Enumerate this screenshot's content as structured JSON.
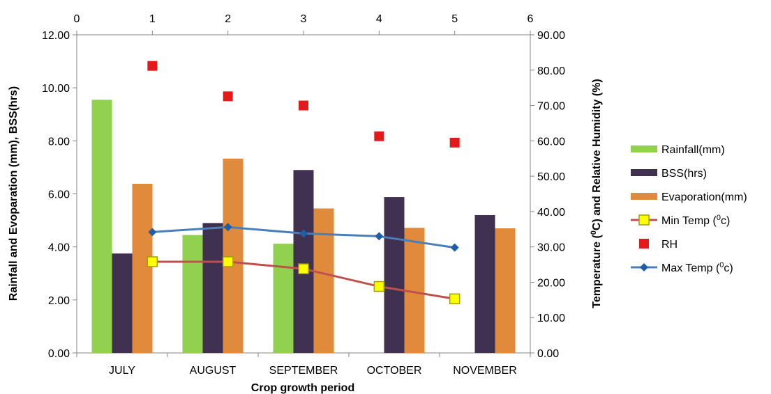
{
  "chart_data": {
    "type": "bar",
    "categories": [
      "JULY",
      "AUGUST",
      "SEPTEMBER",
      "OCTOBER",
      "NOVEMBER"
    ],
    "xlabel": "Crop growth period",
    "ylabel_left": "Rainfall and Evoparation (mm), BSS(hrs)",
    "ylabel_right": "Temperature (°C) and Relative Humidity (%)",
    "ylabel_right_parts": [
      "Temperature (",
      "0",
      "C) and Relative Humidity (%)"
    ],
    "y_left_ticks": [
      "0.00",
      "2.00",
      "4.00",
      "6.00",
      "8.00",
      "10.00",
      "12.00"
    ],
    "y_right_ticks": [
      "0.00",
      "10.00",
      "20.00",
      "30.00",
      "40.00",
      "50.00",
      "60.00",
      "70.00",
      "80.00",
      "90.00"
    ],
    "x_top_ticks": [
      "0",
      "1",
      "2",
      "3",
      "4",
      "5",
      "6"
    ],
    "ylim_left": [
      0,
      12
    ],
    "ylim_right": [
      0,
      90
    ],
    "xlim_top": [
      0,
      6
    ],
    "grid": false,
    "legend_position": "right",
    "bar_series": [
      {
        "name": "Rainfall(mm)",
        "color": "#92d050",
        "axis": "left",
        "values": [
          9.55,
          4.45,
          4.12,
          null,
          null
        ]
      },
      {
        "name": "BSS(hrs)",
        "color": "#403151",
        "axis": "left",
        "values": [
          3.75,
          4.9,
          6.9,
          5.88,
          5.2
        ]
      },
      {
        "name": "Evaporation(mm)",
        "color": "#e08a3c",
        "axis": "left",
        "values": [
          6.38,
          7.33,
          5.45,
          4.72,
          4.7
        ]
      }
    ],
    "line_series": [
      {
        "name": "Min Temp (°c)",
        "legend_parts": [
          "Min Temp (",
          "0",
          "c)"
        ],
        "color": "#c0504d",
        "marker": "square",
        "marker_fill": "#ffff00",
        "marker_stroke": "#a0a000",
        "axis": "right",
        "x": [
          1,
          2,
          3,
          4,
          5
        ],
        "values": [
          25.8,
          25.8,
          23.8,
          18.8,
          15.3
        ]
      },
      {
        "name": "RH",
        "legend_parts": [
          "RH"
        ],
        "color": "#e31a1c",
        "marker": "square-only",
        "axis": "right",
        "x": [
          1,
          2,
          3,
          4,
          5
        ],
        "values": [
          81.2,
          72.6,
          70.0,
          61.3,
          59.5
        ]
      },
      {
        "name": "Max Temp (°c)",
        "legend_parts": [
          "Max Temp (",
          "0",
          "c)"
        ],
        "color": "#4a7ebb",
        "marker": "diamond",
        "marker_fill": "#1f5fa8",
        "axis": "right",
        "x": [
          1,
          2,
          3,
          4,
          5
        ],
        "values": [
          34.2,
          35.6,
          33.8,
          33.0,
          29.8
        ]
      }
    ]
  }
}
